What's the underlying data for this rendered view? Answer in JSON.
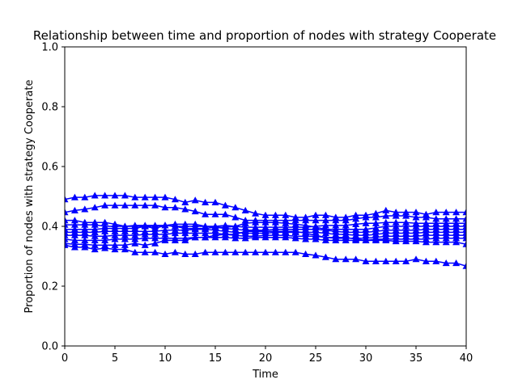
{
  "chart_data": {
    "type": "line",
    "title": "Relationship between time and proportion of nodes with strategy Cooperate",
    "xlabel": "Time",
    "ylabel": "Proportion of nodes with strategy Cooperate",
    "xlim": [
      0,
      40
    ],
    "ylim": [
      0,
      1
    ],
    "xticks": [
      0,
      5,
      10,
      15,
      20,
      25,
      30,
      35,
      40
    ],
    "yticks": [
      0.0,
      0.2,
      0.4,
      0.6,
      0.8,
      1.0
    ],
    "xtick_labels": [
      "0",
      "5",
      "10",
      "15",
      "20",
      "25",
      "30",
      "35",
      "40"
    ],
    "ytick_labels": [
      "0.0",
      "0.2",
      "0.4",
      "0.6",
      "0.8",
      "1.0"
    ],
    "grid": false,
    "legend": "none",
    "marker": "triangle-up",
    "color": "#0000ff",
    "x": [
      0,
      1,
      2,
      3,
      4,
      5,
      6,
      7,
      8,
      9,
      10,
      11,
      12,
      13,
      14,
      15,
      16,
      17,
      18,
      19,
      20,
      21,
      22,
      23,
      24,
      25,
      26,
      27,
      28,
      29,
      30,
      31,
      32,
      33,
      34,
      35,
      36,
      37,
      38,
      39,
      40
    ],
    "series": [
      {
        "values": [
          0.49,
          0.497,
          0.497,
          0.503,
          0.503,
          0.503,
          0.503,
          0.497,
          0.497,
          0.497,
          0.497,
          0.49,
          0.48,
          0.487,
          0.48,
          0.48,
          0.47,
          0.463,
          0.453,
          0.443,
          0.437,
          0.437,
          0.437,
          0.43,
          0.43,
          0.437,
          0.437,
          0.43,
          0.43,
          0.437,
          0.437,
          0.443,
          0.453,
          0.447,
          0.447,
          0.447,
          0.44,
          0.447,
          0.447,
          0.447,
          0.447
        ]
      },
      {
        "values": [
          0.447,
          0.453,
          0.457,
          0.463,
          0.47,
          0.47,
          0.47,
          0.47,
          0.47,
          0.47,
          0.463,
          0.463,
          0.457,
          0.45,
          0.44,
          0.44,
          0.44,
          0.43,
          0.42,
          0.42,
          0.42,
          0.42,
          0.42,
          0.42,
          0.42,
          0.42,
          0.42,
          0.42,
          0.42,
          0.425,
          0.43,
          0.43,
          0.435,
          0.435,
          0.435,
          0.43,
          0.43,
          0.425,
          0.425,
          0.425,
          0.425
        ]
      },
      {
        "values": [
          0.42,
          0.42,
          0.413,
          0.413,
          0.413,
          0.407,
          0.4,
          0.403,
          0.403,
          0.403,
          0.403,
          0.4,
          0.4,
          0.4,
          0.4,
          0.4,
          0.403,
          0.4,
          0.397,
          0.397,
          0.397,
          0.397,
          0.397,
          0.397,
          0.397,
          0.4,
          0.403,
          0.403,
          0.403,
          0.407,
          0.41,
          0.41,
          0.413,
          0.413,
          0.413,
          0.41,
          0.41,
          0.41,
          0.41,
          0.41,
          0.41
        ]
      },
      {
        "values": [
          0.405,
          0.405,
          0.405,
          0.405,
          0.4,
          0.4,
          0.4,
          0.4,
          0.4,
          0.393,
          0.403,
          0.4,
          0.393,
          0.393,
          0.393,
          0.397,
          0.397,
          0.4,
          0.41,
          0.413,
          0.413,
          0.413,
          0.41,
          0.407,
          0.403,
          0.397,
          0.39,
          0.39,
          0.39,
          0.39,
          0.39,
          0.395,
          0.4,
          0.4,
          0.4,
          0.4,
          0.4,
          0.4,
          0.4,
          0.4,
          0.4
        ]
      },
      {
        "values": [
          0.39,
          0.39,
          0.39,
          0.39,
          0.393,
          0.393,
          0.393,
          0.393,
          0.4,
          0.4,
          0.403,
          0.407,
          0.407,
          0.407,
          0.4,
          0.397,
          0.393,
          0.39,
          0.387,
          0.387,
          0.387,
          0.39,
          0.39,
          0.39,
          0.39,
          0.39,
          0.387,
          0.383,
          0.38,
          0.38,
          0.38,
          0.383,
          0.387,
          0.387,
          0.387,
          0.387,
          0.39,
          0.39,
          0.39,
          0.39,
          0.39
        ]
      },
      {
        "values": [
          0.38,
          0.38,
          0.38,
          0.38,
          0.383,
          0.383,
          0.383,
          0.383,
          0.383,
          0.383,
          0.387,
          0.387,
          0.387,
          0.39,
          0.39,
          0.387,
          0.383,
          0.38,
          0.377,
          0.377,
          0.377,
          0.38,
          0.38,
          0.38,
          0.38,
          0.38,
          0.377,
          0.373,
          0.373,
          0.37,
          0.37,
          0.373,
          0.377,
          0.377,
          0.377,
          0.377,
          0.38,
          0.38,
          0.38,
          0.38,
          0.38
        ]
      },
      {
        "values": [
          0.37,
          0.37,
          0.37,
          0.367,
          0.367,
          0.37,
          0.37,
          0.37,
          0.373,
          0.373,
          0.373,
          0.377,
          0.377,
          0.377,
          0.377,
          0.377,
          0.373,
          0.37,
          0.367,
          0.367,
          0.37,
          0.37,
          0.37,
          0.367,
          0.367,
          0.367,
          0.363,
          0.36,
          0.36,
          0.36,
          0.36,
          0.363,
          0.367,
          0.367,
          0.367,
          0.367,
          0.37,
          0.37,
          0.37,
          0.37,
          0.37
        ]
      },
      {
        "values": [
          0.357,
          0.353,
          0.353,
          0.353,
          0.353,
          0.357,
          0.357,
          0.357,
          0.36,
          0.36,
          0.36,
          0.36,
          0.36,
          0.363,
          0.363,
          0.363,
          0.363,
          0.36,
          0.36,
          0.363,
          0.363,
          0.363,
          0.363,
          0.36,
          0.357,
          0.357,
          0.353,
          0.353,
          0.353,
          0.353,
          0.353,
          0.357,
          0.357,
          0.357,
          0.357,
          0.357,
          0.357,
          0.36,
          0.36,
          0.36,
          0.36
        ]
      },
      {
        "values": [
          0.343,
          0.34,
          0.34,
          0.337,
          0.337,
          0.337,
          0.337,
          0.343,
          0.337,
          0.343,
          0.353,
          0.353,
          0.353,
          0.363,
          0.363,
          0.37,
          0.373,
          0.373,
          0.383,
          0.383,
          0.383,
          0.383,
          0.383,
          0.383,
          0.377,
          0.37,
          0.363,
          0.363,
          0.363,
          0.357,
          0.353,
          0.353,
          0.353,
          0.35,
          0.35,
          0.35,
          0.347,
          0.347,
          0.347,
          0.347,
          0.34
        ]
      },
      {
        "values": [
          0.337,
          0.33,
          0.33,
          0.323,
          0.327,
          0.323,
          0.323,
          0.313,
          0.313,
          0.313,
          0.307,
          0.313,
          0.307,
          0.307,
          0.313,
          0.313,
          0.313,
          0.313,
          0.313,
          0.313,
          0.313,
          0.313,
          0.313,
          0.313,
          0.307,
          0.303,
          0.297,
          0.29,
          0.29,
          0.29,
          0.283,
          0.283,
          0.283,
          0.283,
          0.283,
          0.29,
          0.283,
          0.283,
          0.277,
          0.277,
          0.267
        ]
      }
    ]
  }
}
